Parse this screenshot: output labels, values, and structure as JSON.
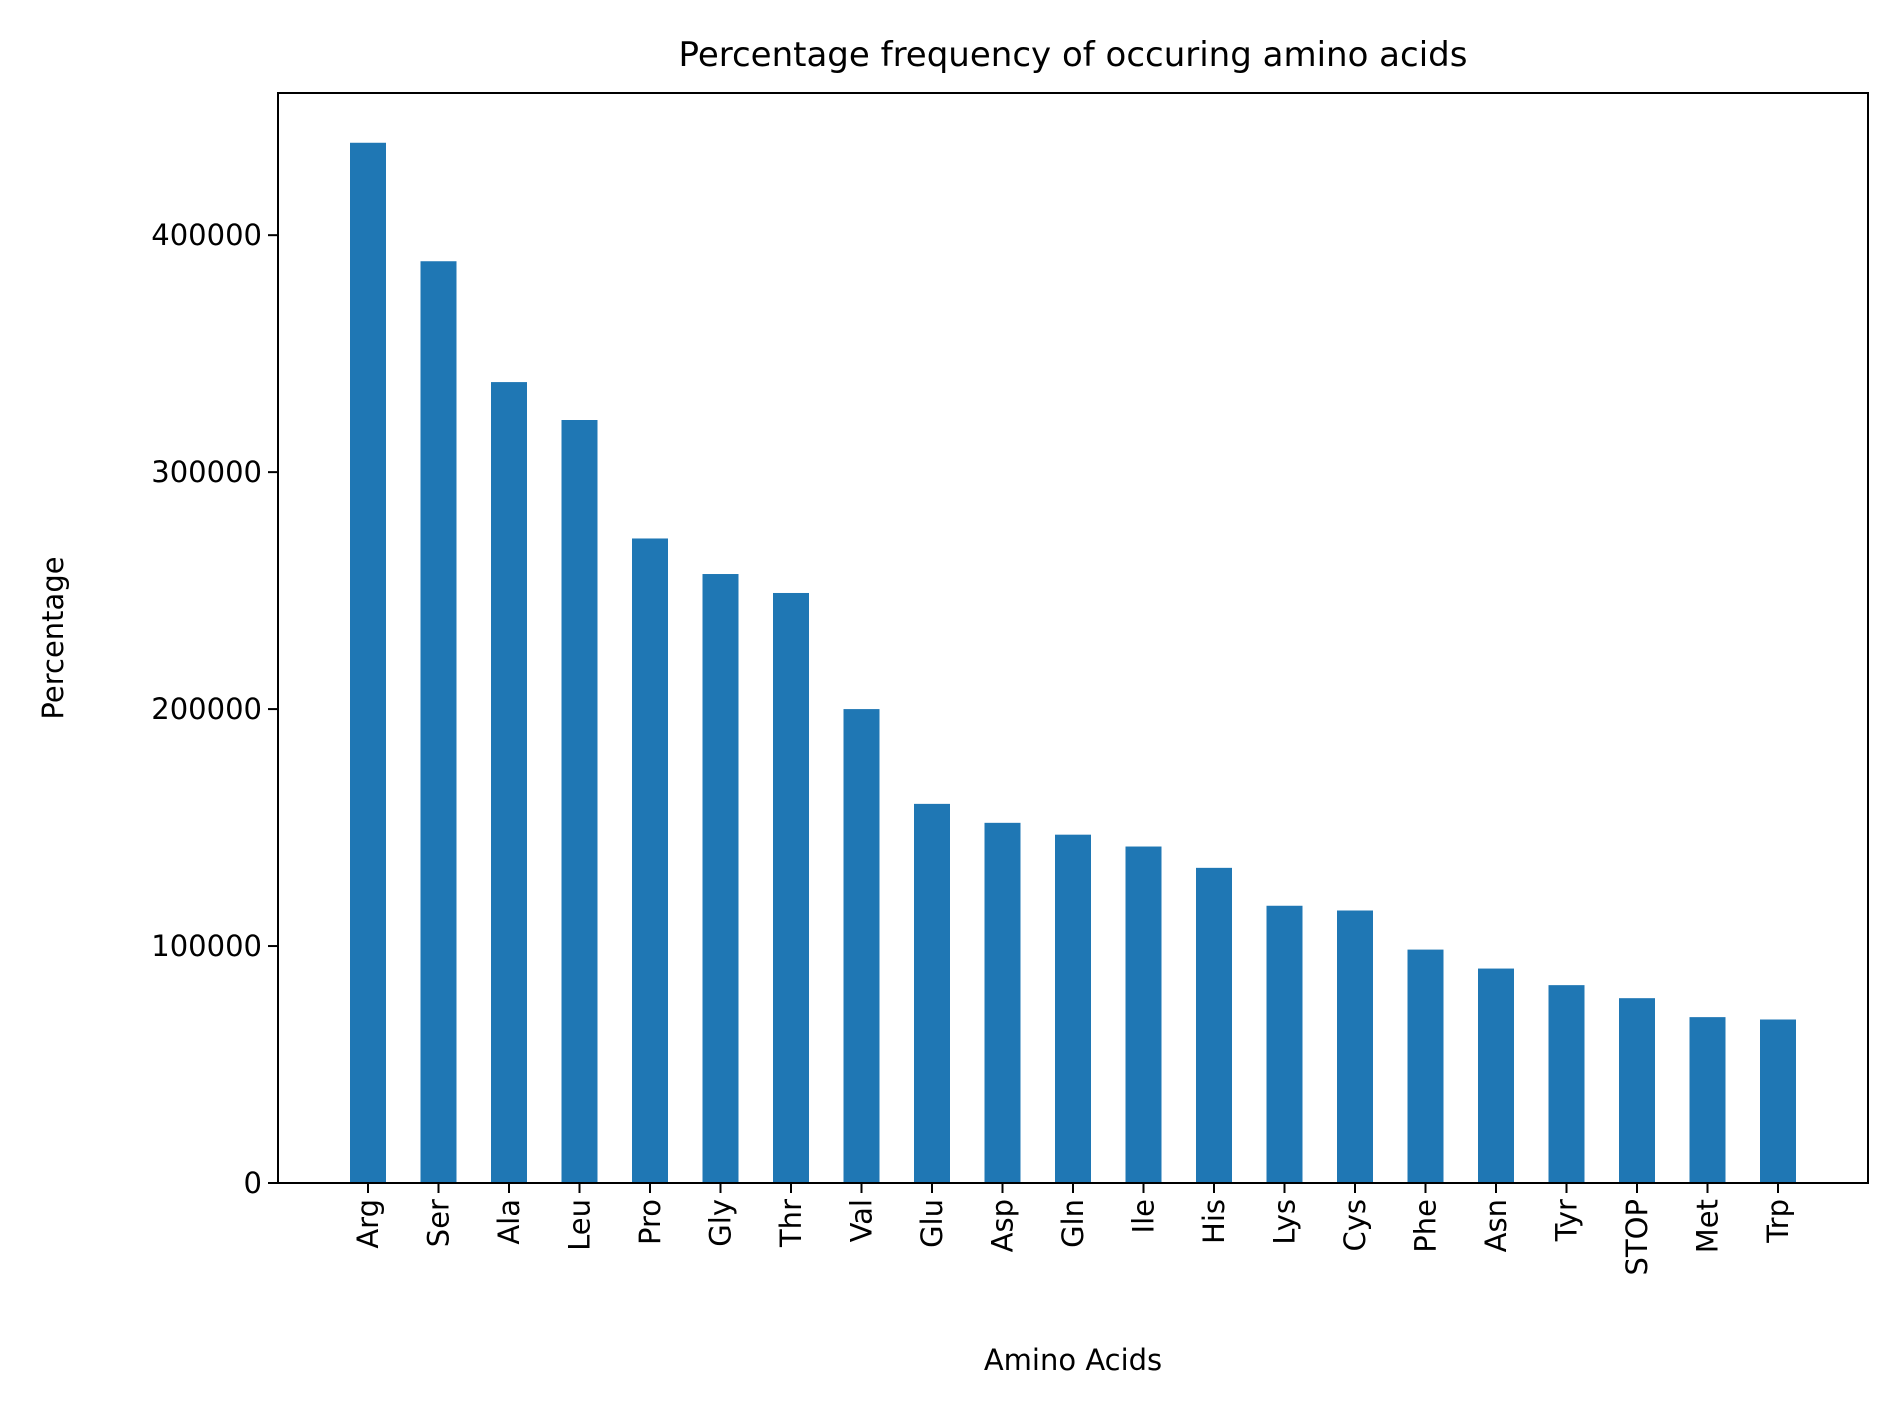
{
  "chart_data": {
    "type": "bar",
    "title": "Percentage frequency of occuring amino acids",
    "xlabel": "Amino Acids",
    "ylabel": "Percentage",
    "categories": [
      "Arg",
      "Ser",
      "Ala",
      "Leu",
      "Pro",
      "Gly",
      "Thr",
      "Val",
      "Glu",
      "Asp",
      "Gln",
      "Ile",
      "His",
      "Lys",
      "Cys",
      "Phe",
      "Asn",
      "Tyr",
      "STOP",
      "Met",
      "Trp"
    ],
    "values": [
      439000,
      389000,
      338000,
      322000,
      272000,
      257000,
      249000,
      200000,
      160000,
      152000,
      147000,
      142000,
      133000,
      117000,
      115000,
      98500,
      90500,
      83500,
      78000,
      70000,
      69000
    ],
    "ylim": [
      0,
      460000
    ],
    "yticks": [
      0,
      100000,
      200000,
      300000,
      400000
    ],
    "ytick_labels": [
      "0",
      "100000",
      "200000",
      "300000",
      "400000"
    ],
    "grid": false,
    "bar_color": "#1f77b4"
  }
}
